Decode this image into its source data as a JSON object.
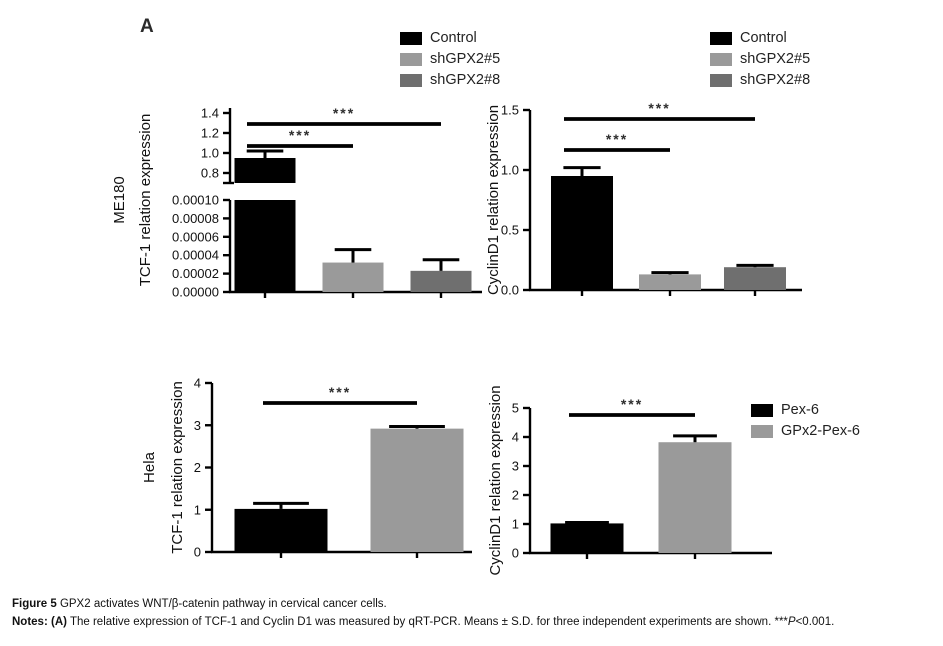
{
  "panel_label": "A",
  "colors": {
    "black": "#000000",
    "gray_light": "#9a9a9a",
    "gray_dark": "#6f6f6f",
    "axis": "#000000"
  },
  "legends": {
    "knockdown_left": {
      "items": [
        {
          "label": "Control",
          "color": "#000000"
        },
        {
          "label": "shGPX2#5",
          "color": "#9a9a9a"
        },
        {
          "label": "shGPX2#8",
          "color": "#6f6f6f"
        }
      ]
    },
    "knockdown_right": {
      "items": [
        {
          "label": "Control",
          "color": "#000000"
        },
        {
          "label": "shGPX2#5",
          "color": "#9a9a9a"
        },
        {
          "label": "shGPX2#8",
          "color": "#6f6f6f"
        }
      ]
    },
    "overexpression": {
      "items": [
        {
          "label": "Pex-6",
          "color": "#000000"
        },
        {
          "label": "GPx2-Pex-6",
          "color": "#9a9a9a"
        }
      ]
    }
  },
  "chart_data": [
    {
      "id": "me180-tcf1",
      "type": "bar",
      "cell_line": "ME180",
      "ylabel": "TCF-1 relation expression",
      "axis_break": true,
      "categories": [
        "Control",
        "shGPX2#5",
        "shGPX2#8"
      ],
      "values": [
        0.95,
        3.2e-05,
        2.3e-05
      ],
      "errors": [
        0.07,
        1.4e-05,
        1.2e-05
      ],
      "bar_colors": [
        "#000000",
        "#9a9a9a",
        "#6f6f6f"
      ],
      "segments": [
        {
          "ylim": [
            0.7,
            1.45
          ],
          "yticks": [
            "0.8",
            "1.0",
            "1.2",
            "1.4"
          ]
        },
        {
          "ylim": [
            0,
            0.0001
          ],
          "yticks": [
            "0.00000",
            "0.00002",
            "0.00004",
            "0.00006",
            "0.00008",
            "0.00010"
          ]
        }
      ],
      "significance": [
        {
          "pair": [
            0,
            1
          ],
          "label": "***"
        },
        {
          "pair": [
            0,
            2
          ],
          "label": "***"
        }
      ]
    },
    {
      "id": "me180-cyclind1",
      "type": "bar",
      "cell_line": "ME180",
      "ylabel": "CyclinD1 relation expression",
      "axis_break": false,
      "categories": [
        "Control",
        "shGPX2#5",
        "shGPX2#8"
      ],
      "values": [
        0.95,
        0.13,
        0.19
      ],
      "errors": [
        0.07,
        0.015,
        0.015
      ],
      "bar_colors": [
        "#000000",
        "#9a9a9a",
        "#6f6f6f"
      ],
      "segments": [
        {
          "ylim": [
            0,
            1.5
          ],
          "yticks": [
            "0.0",
            "0.5",
            "1.0",
            "1.5"
          ]
        }
      ],
      "significance": [
        {
          "pair": [
            0,
            1
          ],
          "label": "***"
        },
        {
          "pair": [
            0,
            2
          ],
          "label": "***"
        }
      ]
    },
    {
      "id": "hela-tcf1",
      "type": "bar",
      "cell_line": "Hela",
      "ylabel": "TCF-1 relation expression",
      "axis_break": false,
      "categories": [
        "Pex-6",
        "GPx2-Pex-6"
      ],
      "values": [
        1.02,
        2.92
      ],
      "errors": [
        0.13,
        0.05
      ],
      "bar_colors": [
        "#000000",
        "#9a9a9a"
      ],
      "segments": [
        {
          "ylim": [
            0,
            4
          ],
          "yticks": [
            "0",
            "1",
            "2",
            "3",
            "4"
          ]
        }
      ],
      "significance": [
        {
          "pair": [
            0,
            1
          ],
          "label": "***"
        }
      ]
    },
    {
      "id": "hela-cyclind1",
      "type": "bar",
      "cell_line": "Hela",
      "ylabel": "CyclinD1 relation expression",
      "axis_break": false,
      "categories": [
        "Pex-6",
        "GPx2-Pex-6"
      ],
      "values": [
        1.02,
        3.82
      ],
      "errors": [
        0.03,
        0.22
      ],
      "bar_colors": [
        "#000000",
        "#9a9a9a"
      ],
      "segments": [
        {
          "ylim": [
            0,
            5
          ],
          "yticks": [
            "0",
            "1",
            "2",
            "3",
            "4",
            "5"
          ]
        }
      ],
      "significance": [
        {
          "pair": [
            0,
            1
          ],
          "label": "***"
        }
      ]
    }
  ],
  "caption": {
    "figure_label": "Figure 5",
    "figure_text": "GPX2 activates WNT/β-catenin pathway in cervical cancer cells.",
    "notes_label": "Notes:",
    "notes_panel": "(A)",
    "notes_text": "The relative expression of TCF-1 and Cyclin D1 was measured by qRT-PCR. Means ± S.D. for three independent experiments are shown.",
    "sig_stars": "***",
    "sig_p": "P",
    "sig_value": "<0.001."
  }
}
